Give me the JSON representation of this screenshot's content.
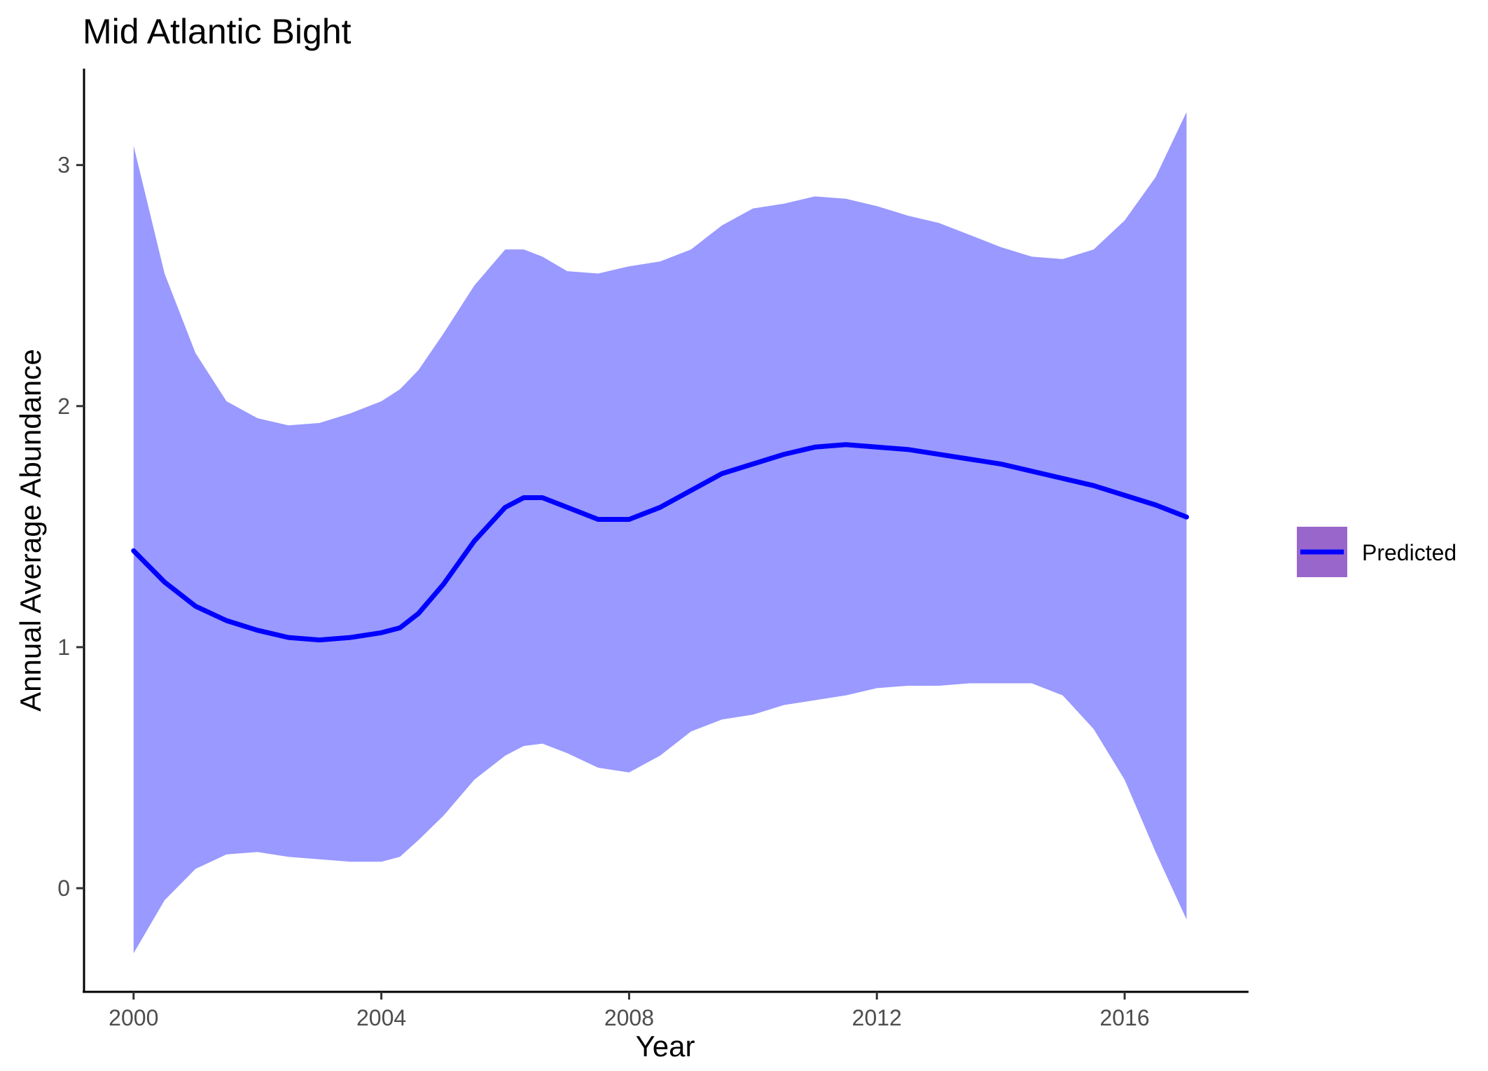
{
  "chart_data": {
    "type": "line",
    "title": "Mid Atlantic Bight",
    "xlabel": "Year",
    "ylabel": "Annual Average Abundance",
    "xlim": [
      1999.2,
      2018.0
    ],
    "ylim": [
      -0.43,
      3.4
    ],
    "x_ticks": [
      2000,
      2004,
      2008,
      2012,
      2016
    ],
    "x_tick_labels": [
      "2000",
      "2004",
      "2008",
      "2012",
      "2016"
    ],
    "y_ticks": [
      0,
      1,
      2,
      3
    ],
    "y_tick_labels": [
      "0",
      "1",
      "2",
      "3"
    ],
    "grid": false,
    "legend_position": "right",
    "colors": {
      "line": "#0000ff",
      "ribbon": "#9999ff",
      "legend_key_fill": "#9966cc"
    },
    "series": [
      {
        "name": "Predicted",
        "kind": "line_with_ribbon",
        "x": [
          2000.0,
          2000.5,
          2001.0,
          2001.5,
          2002.0,
          2002.5,
          2003.0,
          2003.5,
          2004.0,
          2004.3,
          2004.6,
          2005.0,
          2005.5,
          2006.0,
          2006.3,
          2006.6,
          2007.0,
          2007.5,
          2008.0,
          2008.5,
          2009.0,
          2009.5,
          2010.0,
          2010.5,
          2011.0,
          2011.5,
          2012.0,
          2012.5,
          2013.0,
          2013.5,
          2014.0,
          2014.5,
          2015.0,
          2015.5,
          2016.0,
          2016.5,
          2017.0
        ],
        "y": [
          1.4,
          1.27,
          1.17,
          1.11,
          1.07,
          1.04,
          1.03,
          1.04,
          1.06,
          1.08,
          1.14,
          1.26,
          1.44,
          1.58,
          1.62,
          1.62,
          1.58,
          1.53,
          1.53,
          1.58,
          1.65,
          1.72,
          1.76,
          1.8,
          1.83,
          1.84,
          1.83,
          1.82,
          1.8,
          1.78,
          1.76,
          1.73,
          1.7,
          1.67,
          1.63,
          1.59,
          1.54
        ],
        "lower": [
          -0.27,
          -0.05,
          0.08,
          0.14,
          0.15,
          0.13,
          0.12,
          0.11,
          0.11,
          0.13,
          0.2,
          0.3,
          0.45,
          0.55,
          0.59,
          0.6,
          0.56,
          0.5,
          0.48,
          0.55,
          0.65,
          0.7,
          0.72,
          0.76,
          0.78,
          0.8,
          0.83,
          0.84,
          0.84,
          0.85,
          0.85,
          0.85,
          0.8,
          0.66,
          0.45,
          0.15,
          -0.13
        ],
        "upper": [
          3.08,
          2.55,
          2.22,
          2.02,
          1.95,
          1.92,
          1.93,
          1.97,
          2.02,
          2.07,
          2.15,
          2.3,
          2.5,
          2.65,
          2.65,
          2.62,
          2.56,
          2.55,
          2.58,
          2.6,
          2.65,
          2.75,
          2.82,
          2.84,
          2.87,
          2.86,
          2.83,
          2.79,
          2.76,
          2.71,
          2.66,
          2.62,
          2.61,
          2.65,
          2.77,
          2.95,
          3.22
        ]
      }
    ]
  }
}
